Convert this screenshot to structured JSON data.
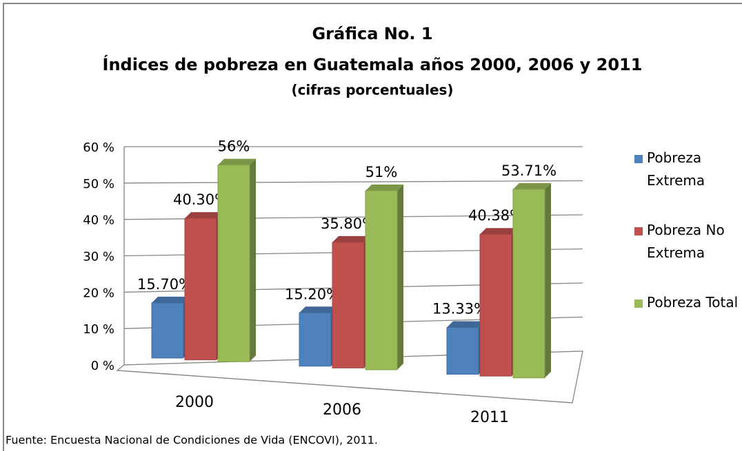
{
  "chart_data": {
    "type": "bar3d",
    "title": "Gráfica No. 1",
    "subtitle": "Índices de pobreza en Guatemala años 2000, 2006 y 2011",
    "subtitle2": "(cifras porcentuales)",
    "source": "Fuente: Encuesta Nacional de  Condiciones de Vida (ENCOVI), 2011.",
    "categories": [
      "2000",
      "2006",
      "2011"
    ],
    "series": [
      {
        "name": "Pobreza Extrema",
        "color": "#4f81bd",
        "values": [
          15.7,
          15.2,
          13.33
        ],
        "value_labels": [
          "15.70%",
          "15.20%",
          "13.33%"
        ]
      },
      {
        "name": "Pobreza No Extrema",
        "color": "#c0504d",
        "values": [
          40.3,
          35.8,
          40.38
        ],
        "value_labels": [
          "40.30%",
          "35.80%",
          "40.38%"
        ]
      },
      {
        "name": "Pobreza Total",
        "color": "#9bbb59",
        "values": [
          56,
          51,
          53.71
        ],
        "value_labels": [
          "56%",
          "51%",
          "53.71%"
        ]
      }
    ],
    "ylim": [
      0,
      60
    ],
    "yticks": [
      {
        "value": 0,
        "label": "0 %"
      },
      {
        "value": 10,
        "label": "10 %"
      },
      {
        "value": 20,
        "label": "20 %"
      },
      {
        "value": 30,
        "label": "30 %"
      },
      {
        "value": 40,
        "label": "40 %"
      },
      {
        "value": 50,
        "label": "50 %"
      },
      {
        "value": 60,
        "label": "60 %"
      }
    ],
    "grid": true,
    "legend": "right"
  }
}
